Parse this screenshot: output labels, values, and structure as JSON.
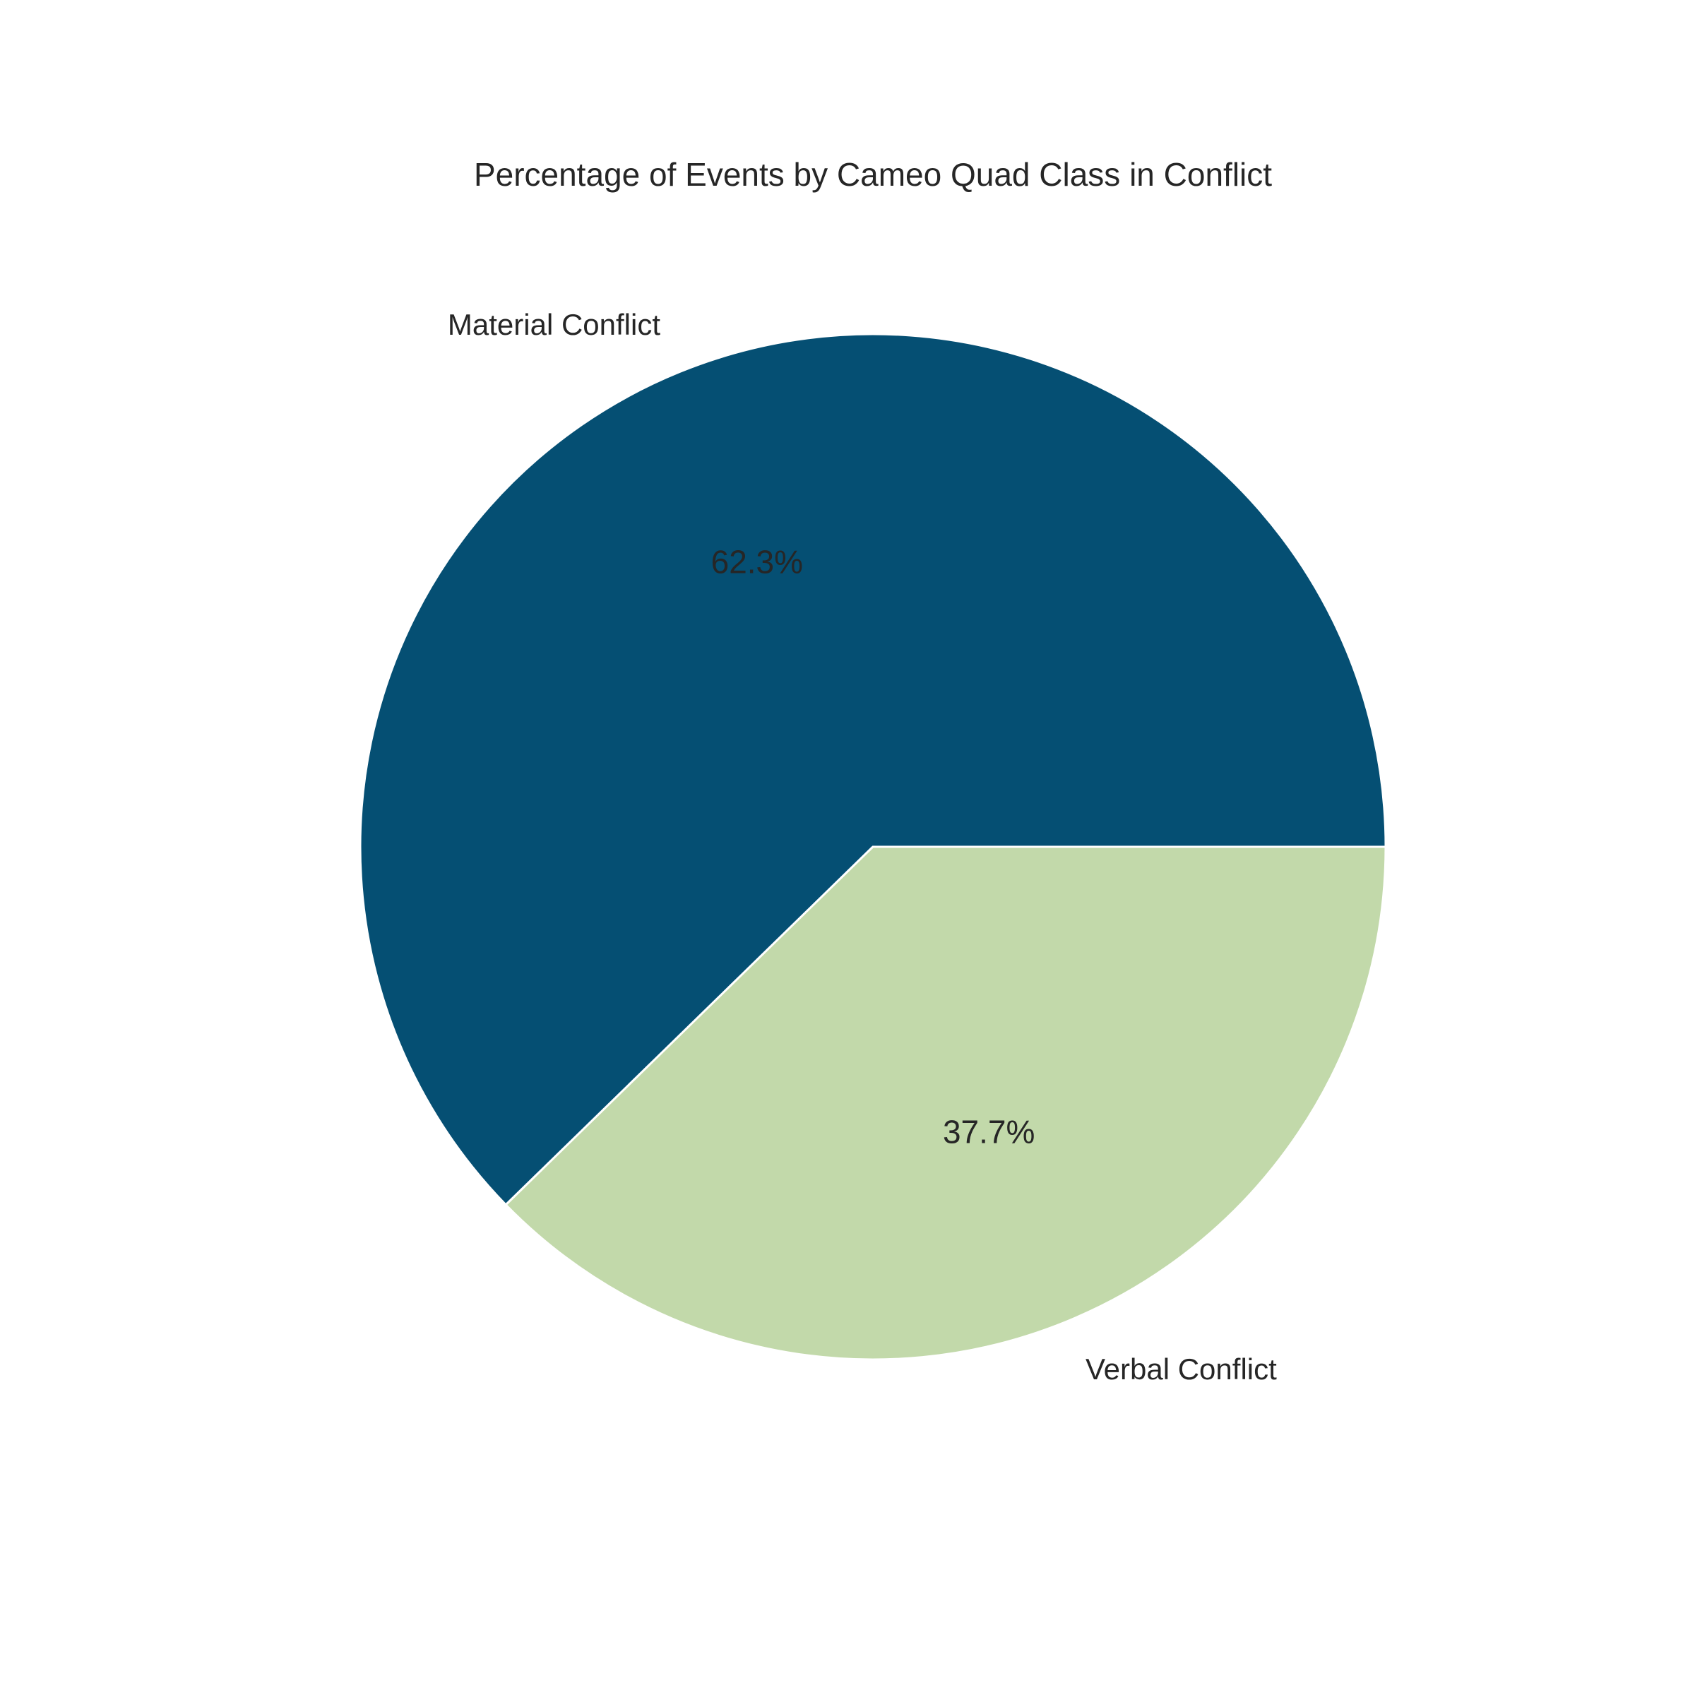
{
  "chart_data": {
    "type": "pie",
    "title": "Percentage of Events by Cameo Quad Class in Conflict",
    "categories": [
      "Material Conflict",
      "Verbal Conflict"
    ],
    "values": [
      62.3,
      37.7
    ],
    "percent_labels": [
      "62.3%",
      "37.7%"
    ],
    "colors": [
      "#054f73",
      "#c2d9aa"
    ],
    "start_angle_deg": 0,
    "direction": "counterclockwise",
    "edge_color": "#ffffff"
  }
}
